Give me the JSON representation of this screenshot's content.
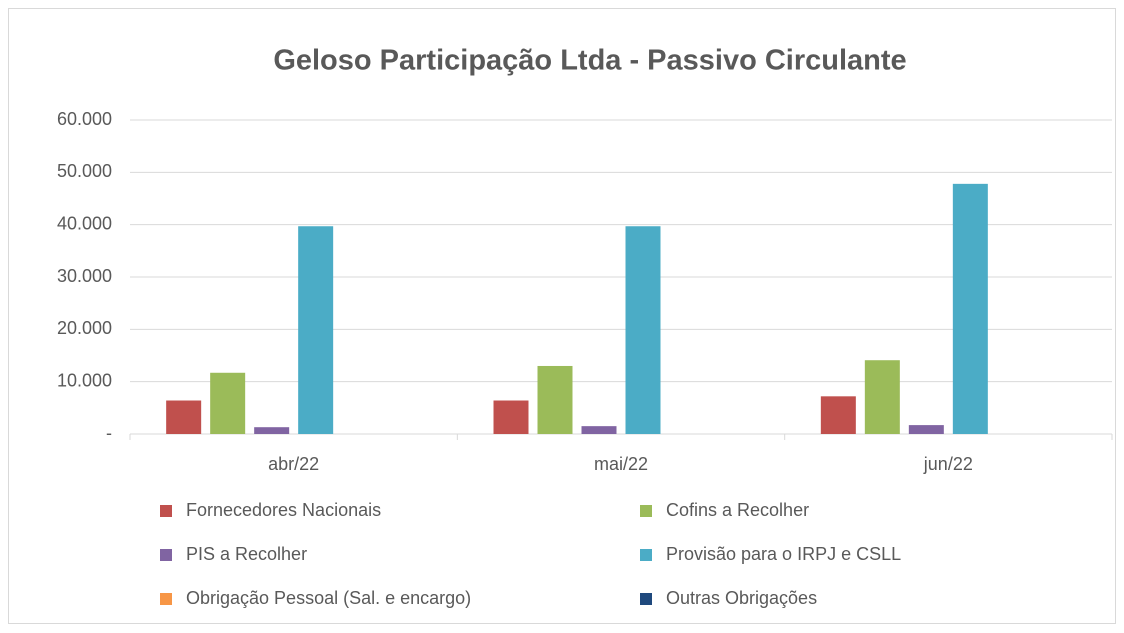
{
  "chart_data": {
    "type": "bar",
    "title": "Geloso Participação Ltda - Passivo Circulante",
    "categories": [
      "abr/22",
      "mai/22",
      "jun/22"
    ],
    "series": [
      {
        "name": "Fornecedores Nacionais",
        "color": "#c0504d",
        "values": [
          6400,
          6400,
          7200
        ]
      },
      {
        "name": "Cofins a Recolher",
        "color": "#9bbb59",
        "values": [
          11700,
          13000,
          14100
        ]
      },
      {
        "name": "PIS a Recolher",
        "color": "#8064a2",
        "values": [
          1300,
          1500,
          1700
        ]
      },
      {
        "name": "Provisão para o IRPJ e CSLL",
        "color": "#4bacc6",
        "values": [
          39700,
          39700,
          47800
        ]
      },
      {
        "name": "Obrigação Pessoal (Sal. e encargo)",
        "color": "#f79646",
        "values": [
          0,
          0,
          0
        ]
      },
      {
        "name": "Outras Obrigações",
        "color": "#1f497d",
        "values": [
          0,
          0,
          0
        ]
      }
    ],
    "ylim": [
      0,
      60000
    ],
    "yticks": [
      {
        "value": 0,
        "label": "-"
      },
      {
        "value": 10000,
        "label": "10.000"
      },
      {
        "value": 20000,
        "label": "20.000"
      },
      {
        "value": 30000,
        "label": "30.000"
      },
      {
        "value": 40000,
        "label": "40.000"
      },
      {
        "value": 50000,
        "label": "50.000"
      },
      {
        "value": 60000,
        "label": "60.000"
      }
    ],
    "grid": true,
    "legend": "bottom"
  }
}
